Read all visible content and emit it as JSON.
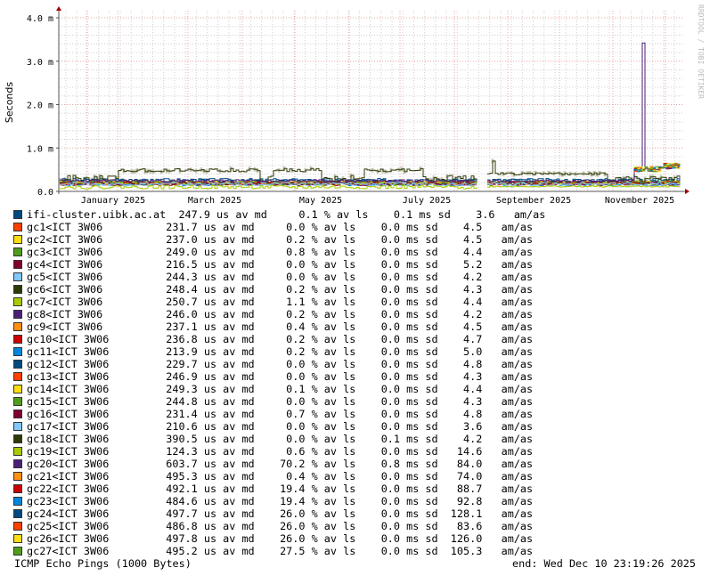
{
  "chart_data": {
    "type": "line",
    "ylabel": "Seconds",
    "yticks": [
      "0.0",
      "1.0 m",
      "2.0 m",
      "3.0 m",
      "4.0 m"
    ],
    "ylim_ms": [
      0,
      4.0
    ],
    "xticks": [
      "January 2025",
      "March 2025",
      "May 2025",
      "July 2025",
      "September 2025",
      "November 2025"
    ],
    "grid": true,
    "watermark": "RRDTOOL / TOBI OETIKER",
    "spike": {
      "series": "gc20<ICT 3W06",
      "month": "November 2025",
      "peak_ms": 3.4
    }
  },
  "legend": {
    "units": {
      "median": "us av md",
      "loss": "% av ls",
      "sd": "ms sd",
      "am": "am/as"
    },
    "rows": [
      {
        "name": "ifi-cluster.uibk.ac.at",
        "median": "247.9",
        "loss": "0.1",
        "sd": "0.1",
        "am": "3.6",
        "color": "#004a80"
      },
      {
        "name": "gc1<ICT 3W06",
        "median": "231.7",
        "loss": "0.0",
        "sd": "0.0",
        "am": "4.5",
        "color": "#ff4000"
      },
      {
        "name": "gc2<ICT 3W06",
        "median": "237.0",
        "loss": "0.2",
        "sd": "0.0",
        "am": "4.5",
        "color": "#ffdd11"
      },
      {
        "name": "gc3<ICT 3W06",
        "median": "249.0",
        "loss": "0.8",
        "sd": "0.0",
        "am": "4.4",
        "color": "#4f9d1d"
      },
      {
        "name": "gc4<ICT 3W06",
        "median": "216.5",
        "loss": "0.0",
        "sd": "0.0",
        "am": "5.2",
        "color": "#7f0030"
      },
      {
        "name": "gc5<ICT 3W06",
        "median": "244.3",
        "loss": "0.0",
        "sd": "0.0",
        "am": "4.2",
        "color": "#80c8ff"
      },
      {
        "name": "gc6<ICT 3W06",
        "median": "248.4",
        "loss": "0.2",
        "sd": "0.0",
        "am": "4.3",
        "color": "#2c3a06"
      },
      {
        "name": "gc7<ICT 3W06",
        "median": "250.7",
        "loss": "1.1",
        "sd": "0.0",
        "am": "4.4",
        "color": "#a8cc00"
      },
      {
        "name": "gc8<ICT 3W06",
        "median": "246.0",
        "loss": "0.2",
        "sd": "0.0",
        "am": "4.2",
        "color": "#4b1e78"
      },
      {
        "name": "gc9<ICT 3W06",
        "median": "237.1",
        "loss": "0.4",
        "sd": "0.0",
        "am": "4.5",
        "color": "#ff9010"
      },
      {
        "name": "gc10<ICT 3W06",
        "median": "236.8",
        "loss": "0.2",
        "sd": "0.0",
        "am": "4.7",
        "color": "#cc0000"
      },
      {
        "name": "gc11<ICT 3W06",
        "median": "213.9",
        "loss": "0.2",
        "sd": "0.0",
        "am": "5.0",
        "color": "#0088dd"
      },
      {
        "name": "gc12<ICT 3W06",
        "median": "229.7",
        "loss": "0.0",
        "sd": "0.0",
        "am": "4.8",
        "color": "#004a80"
      },
      {
        "name": "gc13<ICT 3W06",
        "median": "246.9",
        "loss": "0.0",
        "sd": "0.0",
        "am": "4.3",
        "color": "#ff4000"
      },
      {
        "name": "gc14<ICT 3W06",
        "median": "249.3",
        "loss": "0.1",
        "sd": "0.0",
        "am": "4.4",
        "color": "#ffdd11"
      },
      {
        "name": "gc15<ICT 3W06",
        "median": "244.8",
        "loss": "0.0",
        "sd": "0.0",
        "am": "4.3",
        "color": "#4f9d1d"
      },
      {
        "name": "gc16<ICT 3W06",
        "median": "231.4",
        "loss": "0.7",
        "sd": "0.0",
        "am": "4.8",
        "color": "#7f0030"
      },
      {
        "name": "gc17<ICT 3W06",
        "median": "210.6",
        "loss": "0.0",
        "sd": "0.0",
        "am": "3.6",
        "color": "#80c8ff"
      },
      {
        "name": "gc18<ICT 3W06",
        "median": "390.5",
        "loss": "0.0",
        "sd": "0.1",
        "am": "4.2",
        "color": "#2c3a06"
      },
      {
        "name": "gc19<ICT 3W06",
        "median": "124.3",
        "loss": "0.6",
        "sd": "0.0",
        "am": "14.6",
        "color": "#a8cc00"
      },
      {
        "name": "gc20<ICT 3W06",
        "median": "603.7",
        "loss": "70.2",
        "sd": "0.8",
        "am": "84.0",
        "color": "#4b1e78"
      },
      {
        "name": "gc21<ICT 3W06",
        "median": "495.3",
        "loss": "0.4",
        "sd": "0.0",
        "am": "74.0",
        "color": "#ff9010"
      },
      {
        "name": "gc22<ICT 3W06",
        "median": "492.1",
        "loss": "19.4",
        "sd": "0.0",
        "am": "88.7",
        "color": "#cc0000"
      },
      {
        "name": "gc23<ICT 3W06",
        "median": "484.6",
        "loss": "19.4",
        "sd": "0.0",
        "am": "92.8",
        "color": "#0088dd"
      },
      {
        "name": "gc24<ICT 3W06",
        "median": "497.7",
        "loss": "26.0",
        "sd": "0.0",
        "am": "128.1",
        "color": "#004a80"
      },
      {
        "name": "gc25<ICT 3W06",
        "median": "486.8",
        "loss": "26.0",
        "sd": "0.0",
        "am": "83.6",
        "color": "#ff4000"
      },
      {
        "name": "gc26<ICT 3W06",
        "median": "497.8",
        "loss": "26.0",
        "sd": "0.0",
        "am": "126.0",
        "color": "#ffdd11"
      },
      {
        "name": "gc27<ICT 3W06",
        "median": "495.2",
        "loss": "27.5",
        "sd": "0.0",
        "am": "105.3",
        "color": "#4f9d1d"
      }
    ]
  },
  "footer": {
    "probe": "ICMP Echo Pings (1000 Bytes)",
    "end": "end: Wed Dec 10 23:19:26 2025"
  }
}
